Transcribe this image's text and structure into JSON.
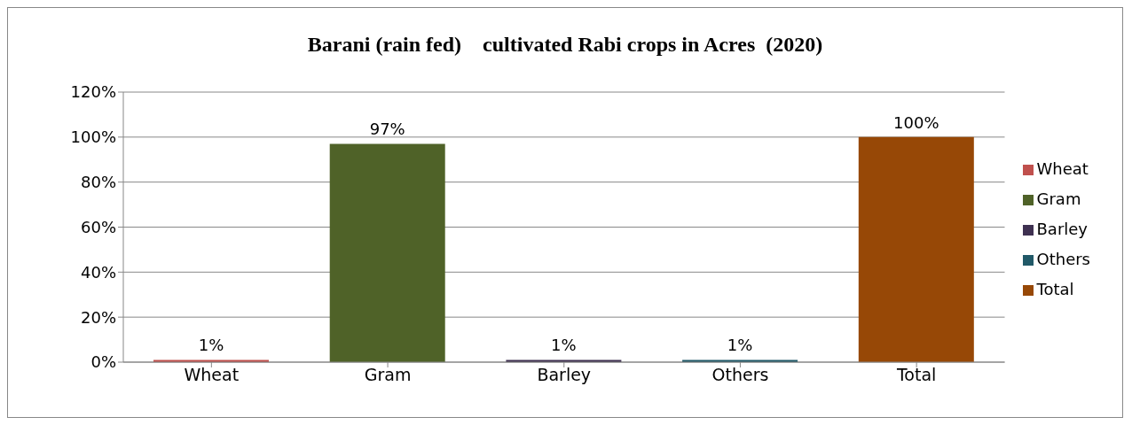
{
  "chart_data": {
    "type": "bar",
    "title": "Barani (rain fed)    cultivated Rabi crops in Acres  (2020)",
    "categories": [
      "Wheat",
      "Gram",
      "Barley",
      "Others",
      "Total"
    ],
    "series": [
      {
        "name": "Wheat",
        "color": "#c0504d",
        "values": [
          1,
          null,
          null,
          null,
          null
        ],
        "value_labels": [
          "1%",
          null,
          null,
          null,
          null
        ]
      },
      {
        "name": "Gram",
        "color": "#4f6228",
        "values": [
          null,
          97,
          null,
          null,
          null
        ],
        "value_labels": [
          null,
          "97%",
          null,
          null,
          null
        ]
      },
      {
        "name": "Barley",
        "color": "#3f3151",
        "values": [
          null,
          null,
          1,
          null,
          null
        ],
        "value_labels": [
          null,
          null,
          "1%",
          null,
          null
        ]
      },
      {
        "name": "Others",
        "color": "#215968",
        "values": [
          null,
          null,
          null,
          1,
          null
        ],
        "value_labels": [
          null,
          null,
          null,
          "1%",
          null
        ]
      },
      {
        "name": "Total",
        "color": "#974806",
        "values": [
          null,
          null,
          null,
          null,
          100
        ],
        "value_labels": [
          null,
          null,
          null,
          null,
          "100%"
        ]
      }
    ],
    "stacked": true,
    "ylim": [
      0,
      120
    ],
    "yticks": [
      {
        "value": 0,
        "label": "0%"
      },
      {
        "value": 20,
        "label": "20%"
      },
      {
        "value": 40,
        "label": "40%"
      },
      {
        "value": 60,
        "label": "60%"
      },
      {
        "value": 80,
        "label": "80%"
      },
      {
        "value": 100,
        "label": "100%"
      },
      {
        "value": 120,
        "label": "120%"
      }
    ],
    "grid": "y",
    "legend": "right"
  }
}
